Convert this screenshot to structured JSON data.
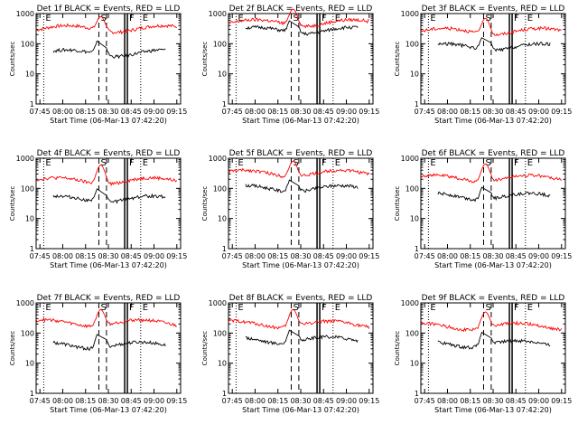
{
  "chart_data": [
    {
      "type": "line",
      "title": "Det 1f BLACK = Events, RED = LLD",
      "ylabel": "Counts/sec",
      "xlabel": "Start Time (06-Mar-13 07:42:20)",
      "yscale": "log",
      "ylim": [
        1,
        1000
      ],
      "xlim": [
        -2,
        36
      ],
      "xtick_labels": [
        "07:45",
        "08:00",
        "08:15",
        "08:30",
        "08:45",
        "09:00",
        "09:15"
      ],
      "ytick_labels": [
        "1",
        "10",
        "100",
        "1000"
      ],
      "markers": [
        {
          "label": "E",
          "x": 0
        },
        {
          "label": "S",
          "x": 14.5
        },
        {
          "label": "F",
          "x": 22
        },
        {
          "label": "E",
          "x": 25.5
        }
      ],
      "series": [
        {
          "name": "LLD",
          "color": "#ff0000",
          "level": 320,
          "peak": 800
        },
        {
          "name": "Events",
          "color": "#000000",
          "level": 50,
          "peak": 200
        }
      ]
    },
    {
      "type": "line",
      "title": "Det 2f BLACK = Events, RED = LLD",
      "ylabel": "Counts/sec",
      "xlabel": "Start Time (06-Mar-13 07:42:20)",
      "yscale": "log",
      "ylim": [
        1,
        1000
      ],
      "xlim": [
        -2,
        36
      ],
      "xtick_labels": [
        "07:45",
        "08:00",
        "08:15",
        "08:30",
        "08:45",
        "09:00",
        "09:15"
      ],
      "ytick_labels": [
        "1",
        "10",
        "100",
        "1000"
      ],
      "markers": [
        {
          "label": "E",
          "x": 0
        },
        {
          "label": "S",
          "x": 14.5
        },
        {
          "label": "F",
          "x": 22
        },
        {
          "label": "E",
          "x": 25.5
        }
      ],
      "series": [
        {
          "name": "LLD",
          "color": "#ff0000",
          "level": 500,
          "peak": 1400
        },
        {
          "name": "Events",
          "color": "#000000",
          "level": 280,
          "peak": 900
        }
      ]
    },
    {
      "type": "line",
      "title": "Det 3f BLACK = Events, RED = LLD",
      "ylabel": "Counts/sec",
      "xlabel": "Start Time (06-Mar-13 07:42:20)",
      "yscale": "log",
      "ylim": [
        1,
        1000
      ],
      "xlim": [
        -2,
        36
      ],
      "xtick_labels": [
        "07:45",
        "08:00",
        "08:15",
        "08:30",
        "08:45",
        "09:00",
        "09:15"
      ],
      "ytick_labels": [
        "1",
        "10",
        "100",
        "1000"
      ],
      "markers": [
        {
          "label": "E",
          "x": 0
        },
        {
          "label": "S",
          "x": 14.5
        },
        {
          "label": "F",
          "x": 22
        },
        {
          "label": "E",
          "x": 25.5
        }
      ],
      "series": [
        {
          "name": "LLD",
          "color": "#ff0000",
          "level": 260,
          "peak": 700
        },
        {
          "name": "Events",
          "color": "#000000",
          "level": 80,
          "peak": 260
        }
      ]
    },
    {
      "type": "line",
      "title": "Det 4f BLACK = Events, RED = LLD",
      "ylabel": "Counts/sec",
      "xlabel": "Start Time (06-Mar-13 07:42:20)",
      "yscale": "log",
      "ylim": [
        1,
        1000
      ],
      "xlim": [
        -2,
        36
      ],
      "xtick_labels": [
        "07:45",
        "08:00",
        "08:15",
        "08:30",
        "08:45",
        "09:00",
        "09:15"
      ],
      "ytick_labels": [
        "1",
        "10",
        "100",
        "1000"
      ],
      "markers": [
        {
          "label": "E",
          "x": 0
        },
        {
          "label": "S",
          "x": 14.5
        },
        {
          "label": "F",
          "x": 22
        },
        {
          "label": "E",
          "x": 25.5
        }
      ],
      "series": [
        {
          "name": "LLD",
          "color": "#ff0000",
          "level": 180,
          "peak": 600
        },
        {
          "name": "Events",
          "color": "#000000",
          "level": 45,
          "peak": 160
        }
      ]
    },
    {
      "type": "line",
      "title": "Det 5f BLACK = Events, RED = LLD",
      "ylabel": "Counts/sec",
      "xlabel": "Start Time (06-Mar-13 07:42:20)",
      "yscale": "log",
      "ylim": [
        1,
        1000
      ],
      "xlim": [
        -2,
        36
      ],
      "xtick_labels": [
        "07:45",
        "08:00",
        "08:15",
        "08:30",
        "08:45",
        "09:00",
        "09:15"
      ],
      "ytick_labels": [
        "1",
        "10",
        "100",
        "1000"
      ],
      "markers": [
        {
          "label": "E",
          "x": 0
        },
        {
          "label": "S",
          "x": 14.5
        },
        {
          "label": "F",
          "x": 22
        },
        {
          "label": "E",
          "x": 25.5
        }
      ],
      "series": [
        {
          "name": "LLD",
          "color": "#ff0000",
          "level": 320,
          "peak": 800
        },
        {
          "name": "Events",
          "color": "#000000",
          "level": 100,
          "peak": 300
        }
      ]
    },
    {
      "type": "line",
      "title": "Det 6f BLACK = Events, RED = LLD",
      "ylabel": "Counts/sec",
      "xlabel": "Start Time (06-Mar-13 07:42:20)",
      "yscale": "log",
      "ylim": [
        1,
        1000
      ],
      "xlim": [
        -2,
        36
      ],
      "xtick_labels": [
        "07:45",
        "08:00",
        "08:15",
        "08:30",
        "08:45",
        "09:00",
        "09:15"
      ],
      "ytick_labels": [
        "1",
        "10",
        "100",
        "1000"
      ],
      "markers": [
        {
          "label": "E",
          "x": 0
        },
        {
          "label": "S",
          "x": 14.5
        },
        {
          "label": "F",
          "x": 22
        },
        {
          "label": "E",
          "x": 25.5
        }
      ],
      "series": [
        {
          "name": "LLD",
          "color": "#ff0000",
          "level": 220,
          "peak": 650
        },
        {
          "name": "Events",
          "color": "#000000",
          "level": 55,
          "peak": 170
        }
      ]
    },
    {
      "type": "line",
      "title": "Det 7f BLACK = Events, RED = LLD",
      "ylabel": "Counts/sec",
      "xlabel": "Start Time (06-Mar-13 07:42:20)",
      "yscale": "log",
      "ylim": [
        1,
        1000
      ],
      "xlim": [
        -2,
        36
      ],
      "xtick_labels": [
        "07:45",
        "08:00",
        "08:15",
        "08:30",
        "08:45",
        "09:00",
        "09:15"
      ],
      "ytick_labels": [
        "1",
        "10",
        "100",
        "1000"
      ],
      "markers": [
        {
          "label": "E",
          "x": 0
        },
        {
          "label": "S",
          "x": 14.5
        },
        {
          "label": "F",
          "x": 22
        },
        {
          "label": "E",
          "x": 25.5
        }
      ],
      "series": [
        {
          "name": "LLD",
          "color": "#ff0000",
          "level": 220,
          "peak": 600
        },
        {
          "name": "Events",
          "color": "#000000",
          "level": 40,
          "peak": 150
        }
      ]
    },
    {
      "type": "line",
      "title": "Det 8f BLACK = Events, RED = LLD",
      "ylabel": "Counts/sec",
      "xlabel": "Start Time (06-Mar-13 07:42:20)",
      "yscale": "log",
      "ylim": [
        1,
        1000
      ],
      "xlim": [
        -2,
        36
      ],
      "xtick_labels": [
        "07:45",
        "08:00",
        "08:15",
        "08:30",
        "08:45",
        "09:00",
        "09:15"
      ],
      "ytick_labels": [
        "1",
        "10",
        "100",
        "1000"
      ],
      "markers": [
        {
          "label": "E",
          "x": 0
        },
        {
          "label": "S",
          "x": 14.5
        },
        {
          "label": "F",
          "x": 22
        },
        {
          "label": "E",
          "x": 25.5
        }
      ],
      "series": [
        {
          "name": "LLD",
          "color": "#ff0000",
          "level": 200,
          "peak": 600
        },
        {
          "name": "Events",
          "color": "#000000",
          "level": 60,
          "peak": 200
        }
      ]
    },
    {
      "type": "line",
      "title": "Det 9f BLACK = Events, RED = LLD",
      "ylabel": "Counts/sec",
      "xlabel": "Start Time (06-Mar-13 07:42:20)",
      "yscale": "log",
      "ylim": [
        1,
        1000
      ],
      "xlim": [
        -2,
        36
      ],
      "xtick_labels": [
        "07:45",
        "08:00",
        "08:15",
        "08:30",
        "08:45",
        "09:00",
        "09:15"
      ],
      "ytick_labels": [
        "1",
        "10",
        "100",
        "1000"
      ],
      "markers": [
        {
          "label": "E",
          "x": 0
        },
        {
          "label": "S",
          "x": 14.5
        },
        {
          "label": "F",
          "x": 22
        },
        {
          "label": "E",
          "x": 25.5
        }
      ],
      "series": [
        {
          "name": "LLD",
          "color": "#ff0000",
          "level": 170,
          "peak": 500
        },
        {
          "name": "Events",
          "color": "#000000",
          "level": 45,
          "peak": 170
        }
      ]
    }
  ]
}
